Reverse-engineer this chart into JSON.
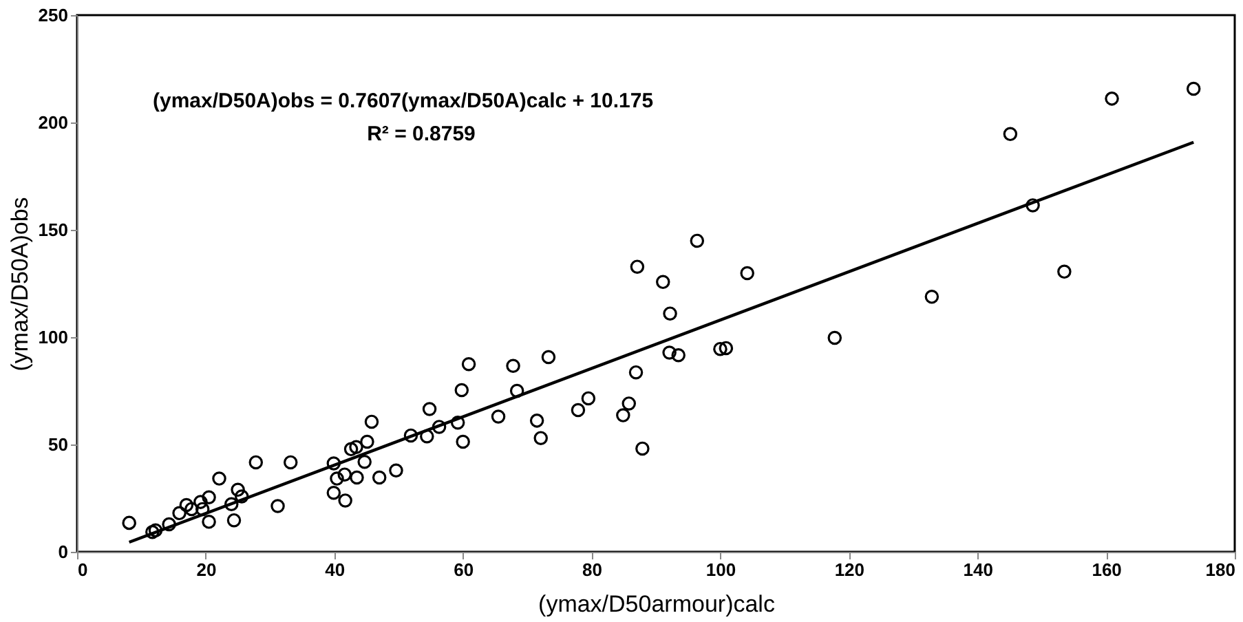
{
  "chart_data": {
    "type": "scatter",
    "xlabel": "(ymax/D50armour)calc",
    "ylabel": "(ymax/D50A)obs",
    "xlim": [
      0,
      180
    ],
    "xticks": [
      0,
      20,
      40,
      60,
      80,
      100,
      120,
      140,
      160,
      180
    ],
    "ylim": [
      0,
      250
    ],
    "yticks": [
      0,
      50,
      100,
      150,
      200,
      250
    ],
    "grid": false,
    "marker": "circle",
    "annotations": [
      "(ymax/D50A)obs = 0.7607(ymax/D50A)calc + 10.175",
      "R² = 0.8759"
    ],
    "series": [
      {
        "color": "#000000",
        "x": [
          8.1,
          11.7,
          12.2,
          14.3,
          15.9,
          17.0,
          17.8,
          19.2,
          19.5,
          20.5,
          20.5,
          22.1,
          24,
          24.4,
          25,
          25.6,
          27.8,
          31.2,
          33.2,
          39.9,
          39.9,
          40.4,
          41.7,
          41.6,
          42.6,
          43.4,
          43.5,
          44.7,
          45.1,
          45.8,
          47,
          49.6,
          51.9,
          54.4,
          54.8,
          56.3,
          59.8,
          60.9,
          59.2,
          60,
          65.5,
          67.8,
          68.4,
          71.5,
          72.1,
          73.3,
          77.9,
          79.5,
          84.9,
          85.8,
          86.9,
          87.1,
          87.9,
          91.1,
          92.2,
          92.1,
          93.5,
          96.4,
          100,
          100.9,
          104.2,
          117.8,
          132.9,
          145.1,
          148.6,
          153.5,
          160.9,
          173.6
        ],
        "values": [
          13.5,
          9.2,
          10,
          12.8,
          18,
          21.8,
          19.9,
          23.2,
          19.9,
          25.4,
          14,
          34.1,
          22.2,
          14.7,
          28.9,
          25.8,
          41.7,
          21.3,
          41.7,
          41.2,
          27.5,
          34.1,
          23.9,
          36,
          47.8,
          48.8,
          34.6,
          41.9,
          51.3,
          60.6,
          34.6,
          37.9,
          54.2,
          53.8,
          66.5,
          58.2,
          75.3,
          87.4,
          60.2,
          51.3,
          63,
          86.6,
          75,
          61.1,
          53,
          90.7,
          66,
          71.5,
          63.6,
          69.1,
          83.6,
          132.8,
          48.1,
          125.7,
          111,
          92.8,
          91.6,
          144.9,
          94.5,
          94.9,
          129.8,
          99.7,
          118.8,
          194.6,
          161.4,
          130.5,
          211.1,
          215.7
        ]
      },
      {
        "type": "line",
        "color": "#000000",
        "marker": "none",
        "line_style": "solid",
        "x": [
          8.1,
          173.6
        ],
        "values": [
          4.5,
          190.8
        ]
      }
    ]
  }
}
